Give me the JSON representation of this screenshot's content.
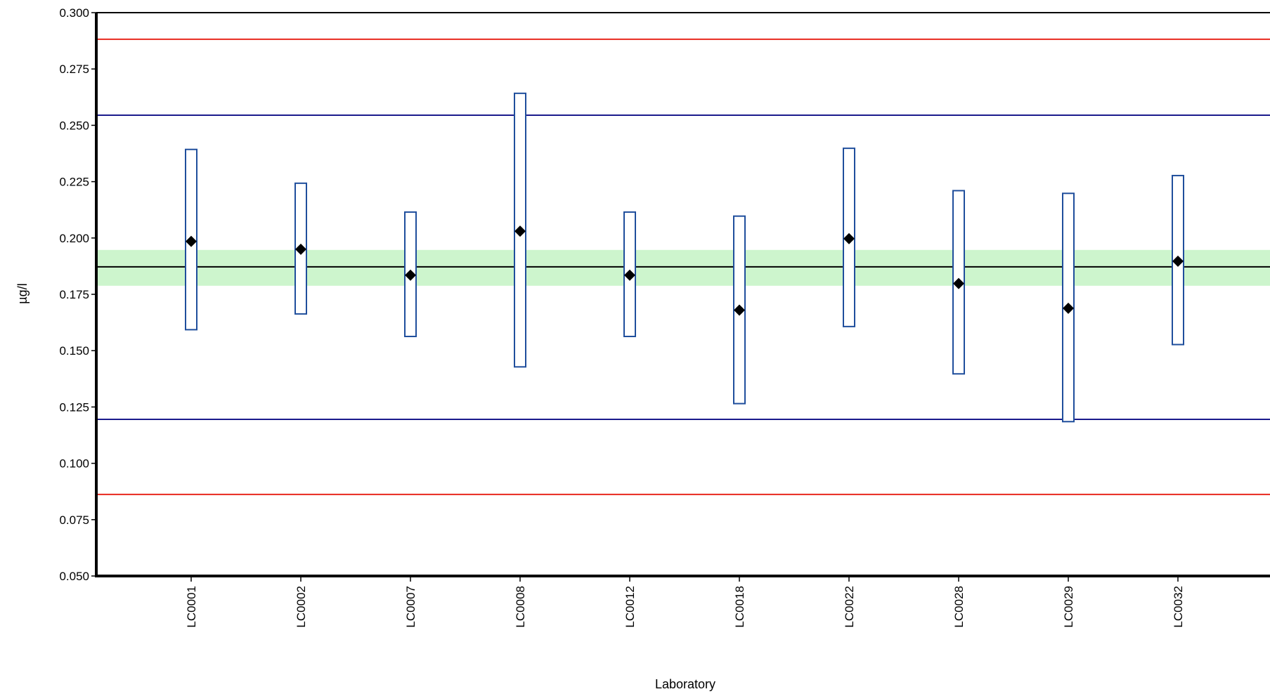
{
  "chart_data": {
    "type": "scatter",
    "title": "",
    "xlabel": "Laboratory",
    "ylabel": "µg/l",
    "ylim": [
      0.05,
      0.3
    ],
    "yticks": [
      "0.050",
      "0.075",
      "0.100",
      "0.125",
      "0.150",
      "0.175",
      "0.200",
      "0.225",
      "0.250",
      "0.275",
      "0.300"
    ],
    "grid": false,
    "categories": [
      "LC0001",
      "LC0002",
      "LC0007",
      "LC0008",
      "LC0012",
      "LC0018",
      "LC0022",
      "LC0028",
      "LC0029",
      "LC0032"
    ],
    "series": [
      {
        "values": [
          0.1985,
          0.195,
          0.1835,
          0.203,
          0.1835,
          0.168,
          0.1997,
          0.1798,
          0.1688,
          0.1897
        ],
        "lower": [
          0.1593,
          0.1663,
          0.1563,
          0.1428,
          0.1563,
          0.1265,
          0.1607,
          0.1397,
          0.1185,
          0.1527
        ],
        "upper": [
          0.2393,
          0.2243,
          0.2115,
          0.2642,
          0.2115,
          0.2097,
          0.2398,
          0.221,
          0.2198,
          0.2277
        ]
      }
    ],
    "reference_lines": [
      {
        "value": 0.1872,
        "color": "#000000"
      },
      {
        "value": 0.2545,
        "color": "#1a1a8c"
      },
      {
        "value": 0.1195,
        "color": "#1a1a8c"
      },
      {
        "value": 0.2882,
        "color": "#e8281e"
      },
      {
        "value": 0.0862,
        "color": "#e8281e"
      }
    ],
    "band": {
      "low": 0.1788,
      "high": 0.1947,
      "color": "#cdf5cd"
    },
    "colors": {
      "bar": "#1f4e9c",
      "marker": "#000000",
      "axis": "#000000"
    }
  }
}
